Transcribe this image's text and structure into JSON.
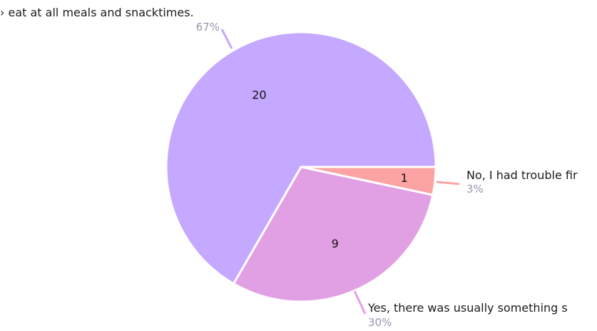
{
  "chart_data": {
    "type": "pie",
    "slices": [
      {
        "label": "Yes, there was something I liked to eat at all meals and snacktimes.",
        "visible_label": "› eat at all meals and snacktimes.",
        "value": 20,
        "percent_label": "67%",
        "color": "#c5a8ff"
      },
      {
        "label": "No, I had trouble finding something I liked to eat at meals and snacktimes.",
        "visible_label": "No, I had trouble fir",
        "value": 1,
        "percent_label": "3%",
        "color": "#fca3a3"
      },
      {
        "label": "Yes, there was usually something I liked to eat at meals and snacktimes.",
        "visible_label": "Yes, there was usually something s",
        "value": 9,
        "percent_label": "30%",
        "color": "#e2a0e4"
      }
    ]
  }
}
